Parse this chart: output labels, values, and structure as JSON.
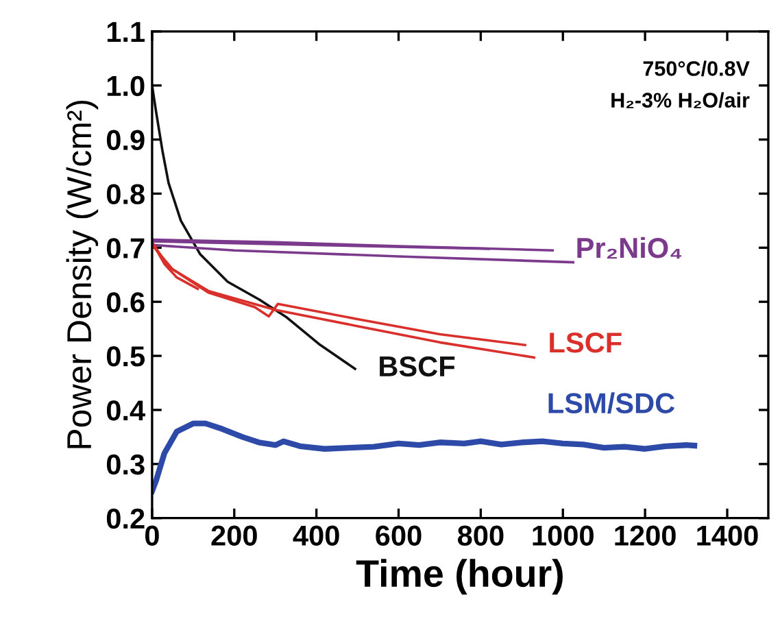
{
  "chart_data": {
    "type": "line",
    "xlabel": "Time (hour)",
    "ylabel": "Power Density (W/cm²)",
    "xlim": [
      0,
      1500
    ],
    "xticks": [
      0,
      200,
      400,
      600,
      800,
      1000,
      1200,
      1400
    ],
    "ylim": [
      0.2,
      1.1
    ],
    "yticks": [
      0.2,
      0.3,
      0.4,
      0.5,
      0.6,
      0.7,
      0.8,
      0.9,
      {
        "value": 1.0,
        "label": "1.0"
      },
      1.1
    ],
    "grid": false,
    "legend": false,
    "marker": "none",
    "line_style": "solid",
    "annotations": [
      "750°C/0.8V",
      "H₂-3% H₂O/air"
    ],
    "series": [
      {
        "name": "BSCF",
        "color": "#111111",
        "x": [
          0,
          10,
          25,
          40,
          70,
          117,
          184,
          261,
          328,
          406,
          494
        ],
        "values": [
          1.0,
          0.95,
          0.88,
          0.82,
          0.75,
          0.688,
          0.637,
          0.604,
          0.571,
          0.522,
          0.476
        ]
      },
      {
        "name": "Pr₂NiO₄",
        "color": "#7b3a8c",
        "x": [
          0,
          300,
          600,
          975
        ],
        "values": [
          0.715,
          0.71,
          0.703,
          0.695
        ]
      },
      {
        "color": "#7b3a8c",
        "x": [
          0,
          200,
          600,
          1025
        ],
        "values": [
          0.705,
          0.695,
          0.684,
          0.673
        ]
      },
      {
        "color": "#7b3a8c",
        "x": [
          0,
          400,
          820
        ],
        "values": [
          0.712,
          0.705,
          0.698
        ]
      },
      {
        "color": "#d9302c",
        "x": [
          0,
          30,
          60,
          111
        ],
        "values": [
          0.71,
          0.67,
          0.645,
          0.624
        ]
      },
      {
        "name": "LSCF",
        "color": "#d9302c",
        "x": [
          0,
          40,
          137,
          250,
          284,
          306,
          500,
          700,
          908
        ],
        "values": [
          0.71,
          0.665,
          0.617,
          0.59,
          0.573,
          0.596,
          0.568,
          0.54,
          0.52
        ]
      },
      {
        "color": "#d9302c",
        "x": [
          0,
          50,
          137,
          300,
          500,
          700,
          930
        ],
        "values": [
          0.705,
          0.66,
          0.62,
          0.585,
          0.555,
          0.525,
          0.497
        ]
      },
      {
        "name": "LSM/SDC",
        "color": "#2e4aa8",
        "x": [
          0,
          10,
          30,
          60,
          100,
          130,
          170,
          220,
          260,
          300,
          320,
          360,
          420,
          480,
          540,
          600,
          650,
          700,
          760,
          800,
          850,
          900,
          950,
          1000,
          1050,
          1100,
          1150,
          1200,
          1250,
          1300,
          1320
        ],
        "values": [
          0.25,
          0.27,
          0.32,
          0.36,
          0.375,
          0.375,
          0.365,
          0.35,
          0.34,
          0.335,
          0.342,
          0.333,
          0.328,
          0.33,
          0.332,
          0.338,
          0.335,
          0.34,
          0.338,
          0.342,
          0.336,
          0.34,
          0.342,
          0.338,
          0.336,
          0.33,
          0.332,
          0.328,
          0.333,
          0.335,
          0.334
        ]
      }
    ]
  }
}
